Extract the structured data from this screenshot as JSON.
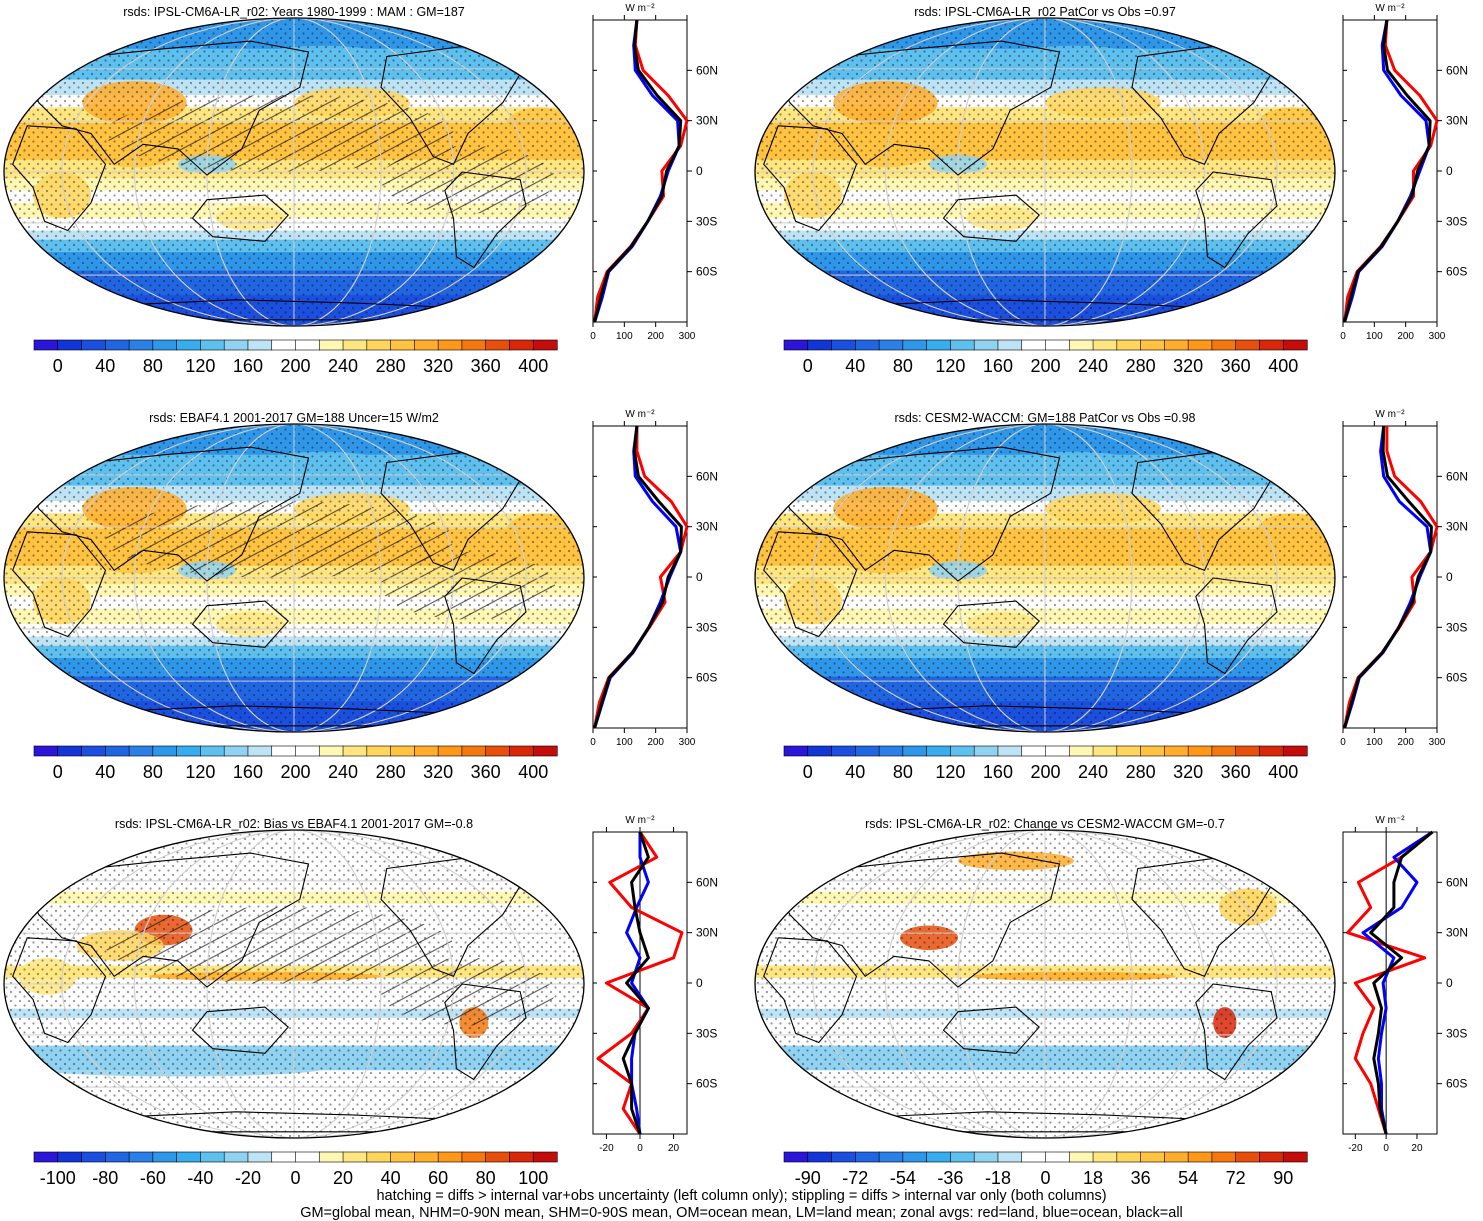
{
  "chart_data": [
    {
      "type": "heatmap",
      "panel": "map",
      "title": "rsds: IPSL-CM6A-LR_r02: Years 1980-1999 : MAM : GM=187",
      "colorbar_ticks": [
        "0",
        "40",
        "80",
        "120",
        "160",
        "200",
        "240",
        "280",
        "320",
        "360",
        "400"
      ],
      "colorbar_range": [
        -20,
        420
      ],
      "colorbar_colors": [
        "#2b15d8",
        "#1236d6",
        "#1a4fe0",
        "#2066e3",
        "#2a80e6",
        "#2f97ea",
        "#37aded",
        "#5ec0ef",
        "#8fd2f1",
        "#bde3f5",
        "#ffffff",
        "#ffffff",
        "#fff7b4",
        "#ffe680",
        "#ffd55c",
        "#ffc341",
        "#ffad2a",
        "#ff9819",
        "#f5780f",
        "#e84f0c",
        "#d9270a",
        "#c40c0b"
      ],
      "zonal_x_ticks": [
        "0",
        "100",
        "200",
        "300"
      ],
      "zonal_xlim": [
        0,
        300
      ],
      "zonal_y_ticks": [
        "60N",
        "30N",
        "0",
        "30S",
        "60S"
      ],
      "zonal_unit": "W m⁻²",
      "zonal_series": [
        {
          "color": "#ff0000",
          "lat": [
            -90,
            -75,
            -60,
            -45,
            -30,
            -15,
            0,
            15,
            30,
            45,
            60,
            75,
            90
          ],
          "values": [
            5,
            15,
            45,
            120,
            175,
            225,
            220,
            280,
            300,
            240,
            160,
            135,
            140
          ]
        },
        {
          "color": "#0000ff",
          "lat": [
            -90,
            -75,
            -60,
            -45,
            -30,
            -15,
            0,
            15,
            30,
            45,
            60,
            75,
            90
          ],
          "values": [
            5,
            30,
            50,
            125,
            175,
            215,
            240,
            275,
            270,
            190,
            135,
            130,
            140
          ]
        },
        {
          "color": "#000000",
          "lat": [
            -90,
            -75,
            -60,
            -45,
            -30,
            -15,
            0,
            15,
            30,
            45,
            60,
            75,
            90
          ],
          "values": [
            5,
            25,
            48,
            122,
            175,
            220,
            235,
            275,
            280,
            205,
            145,
            132,
            140
          ]
        }
      ]
    },
    {
      "type": "heatmap",
      "panel": "map",
      "title": "rsds: IPSL-CM6A-LR_r02 PatCor vs Obs =0.97",
      "colorbar_ticks": [
        "0",
        "40",
        "80",
        "120",
        "160",
        "200",
        "240",
        "280",
        "320",
        "360",
        "400"
      ],
      "colorbar_range": [
        -20,
        420
      ],
      "colorbar_colors": [
        "#2b15d8",
        "#1236d6",
        "#1a4fe0",
        "#2066e3",
        "#2a80e6",
        "#2f97ea",
        "#37aded",
        "#5ec0ef",
        "#8fd2f1",
        "#bde3f5",
        "#ffffff",
        "#ffffff",
        "#fff7b4",
        "#ffe680",
        "#ffd55c",
        "#ffc341",
        "#ffad2a",
        "#ff9819",
        "#f5780f",
        "#e84f0c",
        "#d9270a",
        "#c40c0b"
      ],
      "zonal_x_ticks": [
        "0",
        "100",
        "200",
        "300"
      ],
      "zonal_xlim": [
        0,
        300
      ],
      "zonal_y_ticks": [
        "60N",
        "30N",
        "0",
        "30S",
        "60S"
      ],
      "zonal_unit": "W m⁻²",
      "zonal_series": [
        {
          "color": "#ff0000",
          "lat": [
            -90,
            -75,
            -60,
            -45,
            -30,
            -15,
            0,
            15,
            30,
            45,
            60,
            75,
            90
          ],
          "values": [
            5,
            15,
            45,
            120,
            175,
            225,
            225,
            280,
            300,
            245,
            165,
            135,
            140
          ]
        },
        {
          "color": "#0000ff",
          "lat": [
            -90,
            -75,
            -60,
            -45,
            -30,
            -15,
            0,
            15,
            30,
            45,
            60,
            75,
            90
          ],
          "values": [
            5,
            30,
            50,
            125,
            175,
            215,
            245,
            275,
            265,
            185,
            130,
            125,
            140
          ]
        },
        {
          "color": "#000000",
          "lat": [
            -90,
            -75,
            -60,
            -45,
            -30,
            -15,
            0,
            15,
            30,
            45,
            60,
            75,
            90
          ],
          "values": [
            5,
            25,
            48,
            122,
            175,
            220,
            238,
            275,
            278,
            205,
            142,
            130,
            140
          ]
        }
      ]
    },
    {
      "type": "heatmap",
      "panel": "map",
      "title": "rsds: EBAF4.1 2001-2017 GM=188 Uncer=15 W/m2",
      "colorbar_ticks": [
        "0",
        "40",
        "80",
        "120",
        "160",
        "200",
        "240",
        "280",
        "320",
        "360",
        "400"
      ],
      "colorbar_range": [
        -20,
        420
      ],
      "colorbar_colors": [
        "#2b15d8",
        "#1236d6",
        "#1a4fe0",
        "#2066e3",
        "#2a80e6",
        "#2f97ea",
        "#37aded",
        "#5ec0ef",
        "#8fd2f1",
        "#bde3f5",
        "#ffffff",
        "#ffffff",
        "#fff7b4",
        "#ffe680",
        "#ffd55c",
        "#ffc341",
        "#ffad2a",
        "#ff9819",
        "#f5780f",
        "#e84f0c",
        "#d9270a",
        "#c40c0b"
      ],
      "zonal_x_ticks": [
        "0",
        "100",
        "200",
        "300"
      ],
      "zonal_xlim": [
        0,
        300
      ],
      "zonal_y_ticks": [
        "60N",
        "30N",
        "0",
        "30S",
        "60S"
      ],
      "zonal_unit": "W m⁻²",
      "zonal_series": [
        {
          "color": "#ff0000",
          "lat": [
            -90,
            -75,
            -60,
            -45,
            -30,
            -15,
            0,
            15,
            30,
            45,
            60,
            75,
            90
          ],
          "values": [
            5,
            20,
            50,
            125,
            180,
            230,
            215,
            280,
            300,
            250,
            165,
            140,
            140
          ]
        },
        {
          "color": "#0000ff",
          "lat": [
            -90,
            -75,
            -60,
            -45,
            -30,
            -15,
            0,
            15,
            30,
            45,
            60,
            75,
            90
          ],
          "values": [
            5,
            30,
            55,
            128,
            178,
            215,
            245,
            280,
            265,
            190,
            135,
            130,
            140
          ]
        },
        {
          "color": "#000000",
          "lat": [
            -90,
            -75,
            -60,
            -45,
            -30,
            -15,
            0,
            15,
            30,
            45,
            60,
            75,
            90
          ],
          "values": [
            5,
            28,
            52,
            126,
            178,
            222,
            240,
            280,
            282,
            210,
            145,
            132,
            140
          ]
        }
      ]
    },
    {
      "type": "heatmap",
      "panel": "map",
      "title": "rsds: CESM2-WACCM: GM=188 PatCor vs Obs =0.98",
      "colorbar_ticks": [
        "0",
        "40",
        "80",
        "120",
        "160",
        "200",
        "240",
        "280",
        "320",
        "360",
        "400"
      ],
      "colorbar_range": [
        -20,
        420
      ],
      "colorbar_colors": [
        "#2b15d8",
        "#1236d6",
        "#1a4fe0",
        "#2066e3",
        "#2a80e6",
        "#2f97ea",
        "#37aded",
        "#5ec0ef",
        "#8fd2f1",
        "#bde3f5",
        "#ffffff",
        "#ffffff",
        "#fff7b4",
        "#ffe680",
        "#ffd55c",
        "#ffc341",
        "#ffad2a",
        "#ff9819",
        "#f5780f",
        "#e84f0c",
        "#d9270a",
        "#c40c0b"
      ],
      "zonal_x_ticks": [
        "0",
        "100",
        "200",
        "300"
      ],
      "zonal_xlim": [
        0,
        300
      ],
      "zonal_y_ticks": [
        "60N",
        "30N",
        "0",
        "30S",
        "60S"
      ],
      "zonal_unit": "W m⁻²",
      "zonal_series": [
        {
          "color": "#ff0000",
          "lat": [
            -90,
            -75,
            -60,
            -45,
            -30,
            -15,
            0,
            15,
            30,
            45,
            60,
            75,
            90
          ],
          "values": [
            5,
            20,
            48,
            125,
            180,
            228,
            220,
            280,
            300,
            248,
            165,
            140,
            140
          ]
        },
        {
          "color": "#0000ff",
          "lat": [
            -90,
            -75,
            -60,
            -45,
            -30,
            -15,
            0,
            15,
            30,
            45,
            60,
            75,
            90
          ],
          "values": [
            5,
            30,
            52,
            128,
            178,
            215,
            245,
            280,
            268,
            180,
            130,
            120,
            130
          ]
        },
        {
          "color": "#000000",
          "lat": [
            -90,
            -75,
            -60,
            -45,
            -30,
            -15,
            0,
            15,
            30,
            45,
            60,
            75,
            90
          ],
          "values": [
            5,
            27,
            50,
            126,
            178,
            222,
            240,
            280,
            282,
            210,
            142,
            128,
            130
          ]
        }
      ]
    },
    {
      "type": "heatmap",
      "panel": "map",
      "title": "rsds: IPSL-CM6A-LR_r02: Bias vs EBAF4.1 2001-2017 GM=-0.8",
      "colorbar_ticks": [
        "-100",
        "-80",
        "-60",
        "-40",
        "-20",
        "0",
        "20",
        "40",
        "60",
        "80",
        "100"
      ],
      "colorbar_range": [
        -110,
        110
      ],
      "colorbar_colors": [
        "#2b15d8",
        "#1236d6",
        "#1a4fe0",
        "#2066e3",
        "#2a80e6",
        "#2f97ea",
        "#37aded",
        "#5ec0ef",
        "#8fd2f1",
        "#bde3f5",
        "#ffffff",
        "#ffffff",
        "#fff7b4",
        "#ffe680",
        "#ffd55c",
        "#ffc341",
        "#ffad2a",
        "#ff9819",
        "#f5780f",
        "#e84f0c",
        "#d9270a",
        "#c40c0b"
      ],
      "zonal_x_ticks": [
        "-20",
        "0",
        "20"
      ],
      "zonal_xlim": [
        -28,
        28
      ],
      "zonal_y_ticks": [
        "60N",
        "30N",
        "0",
        "30S",
        "60S"
      ],
      "zonal_unit": "W m⁻²",
      "zonal_series": [
        {
          "color": "#ff0000",
          "lat": [
            -90,
            -75,
            -60,
            -45,
            -30,
            -15,
            0,
            15,
            30,
            45,
            60,
            75,
            90
          ],
          "values": [
            0,
            -10,
            -5,
            -25,
            -5,
            5,
            -20,
            20,
            25,
            -5,
            -18,
            10,
            0
          ]
        },
        {
          "color": "#0000ff",
          "lat": [
            -90,
            -75,
            -60,
            -45,
            -30,
            -15,
            0,
            15,
            30,
            45,
            60,
            75,
            90
          ],
          "values": [
            0,
            -2,
            -5,
            -5,
            -3,
            5,
            -5,
            0,
            -8,
            -2,
            5,
            0,
            0
          ]
        },
        {
          "color": "#000000",
          "lat": [
            -90,
            -75,
            -60,
            -45,
            -30,
            -15,
            0,
            15,
            30,
            45,
            60,
            75,
            90
          ],
          "values": [
            0,
            -5,
            -5,
            -10,
            -3,
            5,
            -8,
            5,
            0,
            -3,
            -5,
            5,
            0
          ]
        }
      ]
    },
    {
      "type": "heatmap",
      "panel": "map",
      "title": "rsds: IPSL-CM6A-LR_r02: Change vs CESM2-WACCM GM=-0.7",
      "colorbar_ticks": [
        "-90",
        "-72",
        "-54",
        "-36",
        "-18",
        "0",
        "18",
        "36",
        "54",
        "72",
        "90"
      ],
      "colorbar_range": [
        -99,
        99
      ],
      "colorbar_colors": [
        "#2b15d8",
        "#1236d6",
        "#1a4fe0",
        "#2066e3",
        "#2a80e6",
        "#2f97ea",
        "#37aded",
        "#5ec0ef",
        "#8fd2f1",
        "#bde3f5",
        "#ffffff",
        "#ffffff",
        "#fff7b4",
        "#ffe680",
        "#ffd55c",
        "#ffc341",
        "#ffad2a",
        "#ff9819",
        "#f5780f",
        "#e84f0c",
        "#d9270a",
        "#c40c0b"
      ],
      "zonal_x_ticks": [
        "-20",
        "0",
        "20"
      ],
      "zonal_xlim": [
        -28,
        33
      ],
      "zonal_y_ticks": [
        "60N",
        "30N",
        "0",
        "30S",
        "60S"
      ],
      "zonal_unit": "W m⁻²",
      "zonal_series": [
        {
          "color": "#ff0000",
          "lat": [
            -90,
            -75,
            -60,
            -45,
            -30,
            -15,
            0,
            15,
            30,
            45,
            60,
            75,
            90
          ],
          "values": [
            0,
            -5,
            -10,
            -20,
            -15,
            -8,
            -20,
            25,
            -25,
            -10,
            -18,
            10,
            30
          ]
        },
        {
          "color": "#0000ff",
          "lat": [
            -90,
            -75,
            -60,
            -45,
            -30,
            -15,
            0,
            15,
            30,
            45,
            60,
            75,
            90
          ],
          "values": [
            0,
            -3,
            -3,
            -5,
            -3,
            0,
            -2,
            5,
            -15,
            10,
            20,
            5,
            30
          ]
        },
        {
          "color": "#000000",
          "lat": [
            -90,
            -75,
            -60,
            -45,
            -30,
            -15,
            0,
            15,
            30,
            45,
            60,
            75,
            90
          ],
          "values": [
            0,
            -4,
            -5,
            -8,
            -5,
            -3,
            -8,
            10,
            -10,
            5,
            5,
            10,
            30
          ]
        }
      ]
    }
  ],
  "footer": {
    "line1": "hatching = diffs > internal var+obs uncertainty (left column only); stippling = diffs > internal var only (both columns)",
    "line2": "GM=global mean, NHM=0-90N mean, SHM=0-90S mean, OM=ocean mean, LM=land mean; zonal avgs: red=land, blue=ocean, black=all"
  }
}
